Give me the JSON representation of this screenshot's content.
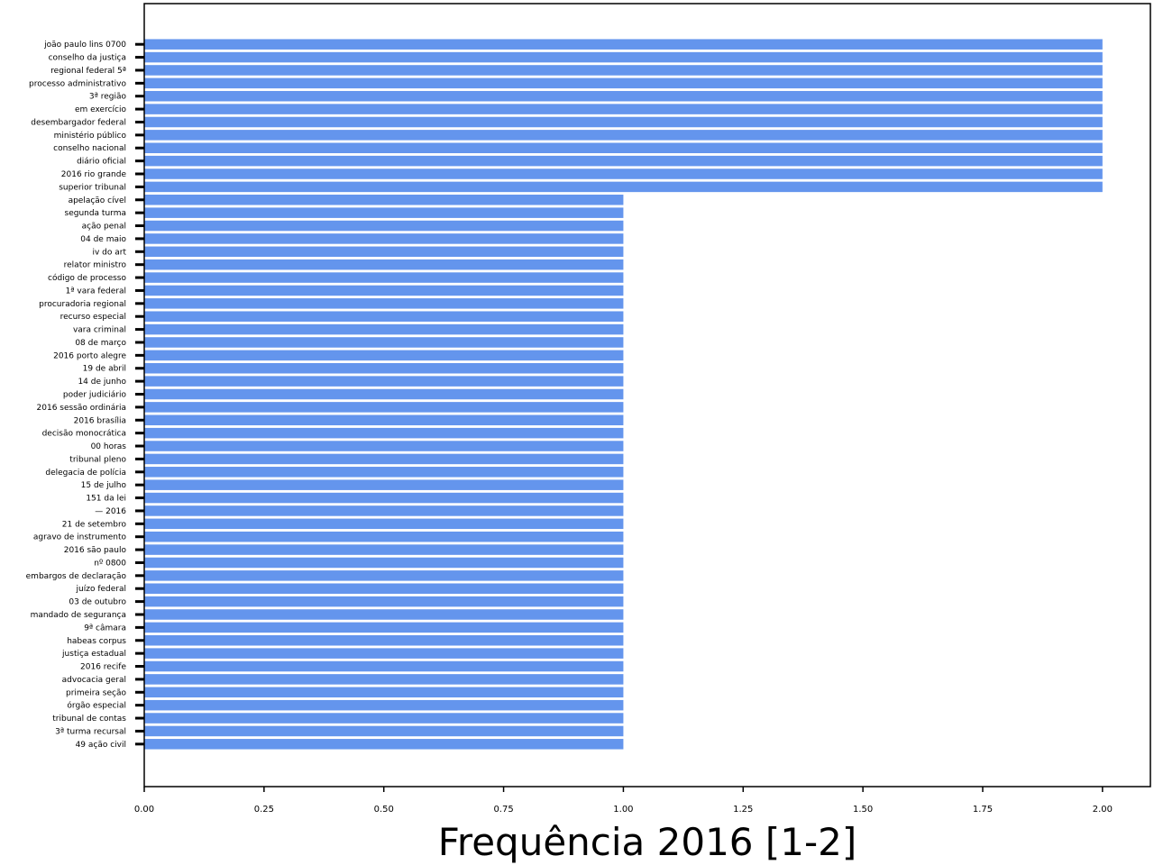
{
  "chart_data": {
    "type": "bar",
    "orientation": "horizontal",
    "title": "",
    "xlabel": "Frequência 2016 [1-2]",
    "ylabel": "",
    "xlim": [
      0,
      2.1
    ],
    "xticks": [
      "0.00",
      "0.25",
      "0.50",
      "0.75",
      "1.00",
      "1.25",
      "1.50",
      "1.75",
      "2.00"
    ],
    "grid": false,
    "legend": "none",
    "bar_color": "#6495ED",
    "categories": [
      "joão paulo lins 0700",
      "conselho da justiça",
      "regional federal 5ª",
      "processo administrativo",
      "3ª região",
      "em exercício",
      "desembargador federal",
      "ministério público",
      "conselho nacional",
      "diário oficial",
      "2016 rio grande",
      "superior tribunal",
      "apelação cível",
      "segunda turma",
      "ação penal",
      "04 de maio",
      "iv do art",
      "relator ministro",
      "código de processo",
      "1ª vara federal",
      "procuradoria regional",
      "recurso especial",
      "vara criminal",
      "08 de março",
      "2016 porto alegre",
      "19 de abril",
      "14 de junho",
      "poder judiciário",
      "2016 sessão ordinária",
      "2016 brasília",
      "decisão monocrática",
      "00 horas",
      "tribunal pleno",
      "delegacia de polícia",
      "15 de julho",
      "151 da lei",
      "— 2016",
      "21 de setembro",
      "agravo de instrumento",
      "2016 são paulo",
      "nº 0800",
      "embargos de declaração",
      "juízo federal",
      "03 de outubro",
      "mandado de segurança",
      "9ª câmara",
      "habeas corpus",
      "justiça estadual",
      "2016 recife",
      "advocacia geral",
      "primeira seção",
      "órgão especial",
      "tribunal de contas",
      "3ª turma recursal",
      "49 ação civil"
    ],
    "values": [
      2,
      2,
      2,
      2,
      2,
      2,
      2,
      2,
      2,
      2,
      2,
      2,
      1,
      1,
      1,
      1,
      1,
      1,
      1,
      1,
      1,
      1,
      1,
      1,
      1,
      1,
      1,
      1,
      1,
      1,
      1,
      1,
      1,
      1,
      1,
      1,
      1,
      1,
      1,
      1,
      1,
      1,
      1,
      1,
      1,
      1,
      1,
      1,
      1,
      1,
      1,
      1,
      1,
      1,
      1
    ]
  }
}
